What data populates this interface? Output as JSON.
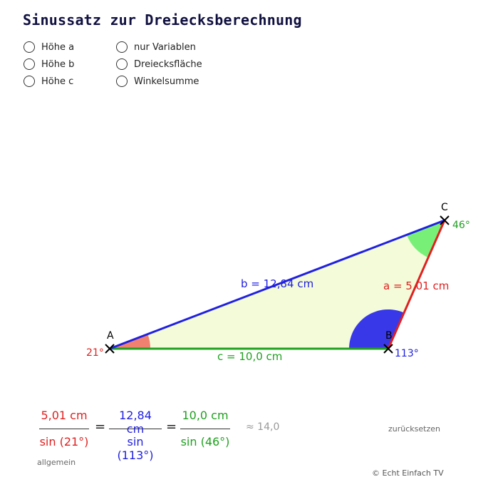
{
  "title": "Sinussatz zur Dreiecksberechnung",
  "options": {
    "left": [
      "Höhe a",
      "Höhe b",
      "Höhe c"
    ],
    "right": [
      "nur Variablen",
      "Dreiecksfläche",
      "Winkelsumme"
    ]
  },
  "triangle": {
    "vertices": {
      "A": "A",
      "B": "B",
      "C": "C"
    },
    "angles": {
      "A": "21°",
      "B": "113°",
      "C": "46°"
    },
    "sides": {
      "a": "a = 5,01 cm",
      "b": "b = 12,84 cm",
      "c": "c = 10,0 cm"
    },
    "colors": {
      "a": "#e02020",
      "b": "#2020e0",
      "c": "#20a020",
      "fill": "#f3fbd9",
      "angleA": "#f08070",
      "angleB": "#3030e0",
      "angleC": "#70f070"
    }
  },
  "formula": {
    "f1": {
      "num": "5,01 cm",
      "den": "sin (21°)"
    },
    "f2": {
      "num": "12,84 cm",
      "den": "sin (113°)"
    },
    "f3": {
      "num": "10,0 cm",
      "den": "sin (46°)"
    },
    "eq": "=",
    "approx": "≈ 14,0"
  },
  "reset_label": "zurücksetzen",
  "general_label": "allgemein",
  "copyright": "© Echt Einfach TV"
}
